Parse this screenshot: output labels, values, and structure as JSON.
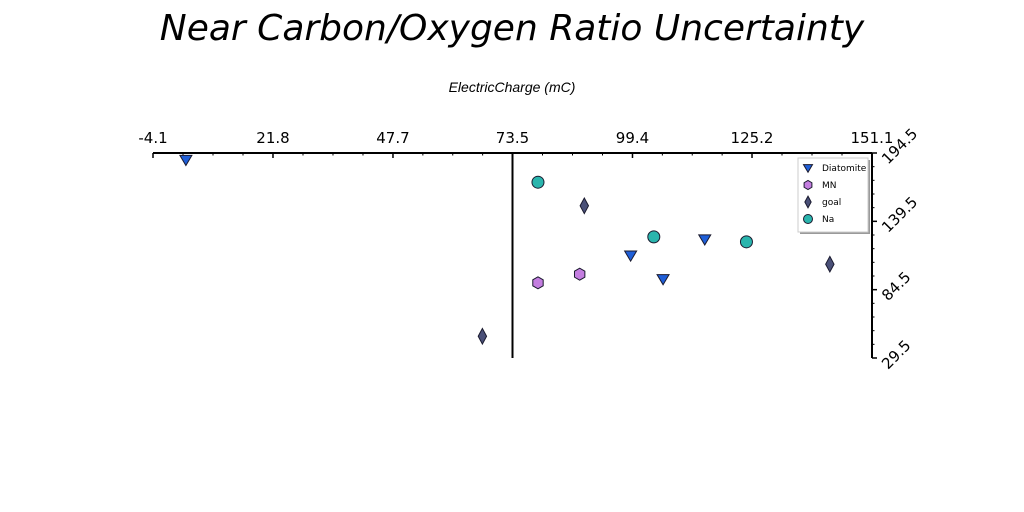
{
  "chart_data": {
    "type": "scatter",
    "title": "Near Carbon/Oxygen Ratio Uncertainty",
    "xlabel": "ElectricCharge (mC)",
    "ylabel": "",
    "xlim": [
      -4.1,
      151.1
    ],
    "ylim": [
      29.5,
      194.5
    ],
    "x_ticks": [
      "-4.1",
      "21.8",
      "47.7",
      "73.5",
      "99.4",
      "125.2",
      "151.1"
    ],
    "y_ticks": [
      "29.5",
      "84.5",
      "139.5",
      "194.5"
    ],
    "x_axis_position": "top",
    "y_axis_position": "right",
    "reference_line_x": 73.5,
    "grid": false,
    "legend": "top-right",
    "series": [
      {
        "name": "Diatomite",
        "marker": "triangle-down",
        "color": "#1f5fd8",
        "points": [
          [
            3,
            189
          ],
          [
            99,
            112
          ],
          [
            106,
            93
          ],
          [
            115,
            125
          ]
        ]
      },
      {
        "name": "MN",
        "marker": "hexagon",
        "color": "#c47ee0",
        "points": [
          [
            79,
            90
          ],
          [
            88,
            97
          ],
          [
            145,
            138
          ]
        ]
      },
      {
        "name": "goal",
        "marker": "diamond",
        "color": "#4a5078",
        "points": [
          [
            67,
            47
          ],
          [
            89,
            152
          ],
          [
            142,
            105
          ]
        ]
      },
      {
        "name": "Na",
        "marker": "circle",
        "color": "#2ab5ad",
        "points": [
          [
            79,
            171
          ],
          [
            104,
            127
          ],
          [
            124,
            123
          ]
        ]
      }
    ]
  }
}
